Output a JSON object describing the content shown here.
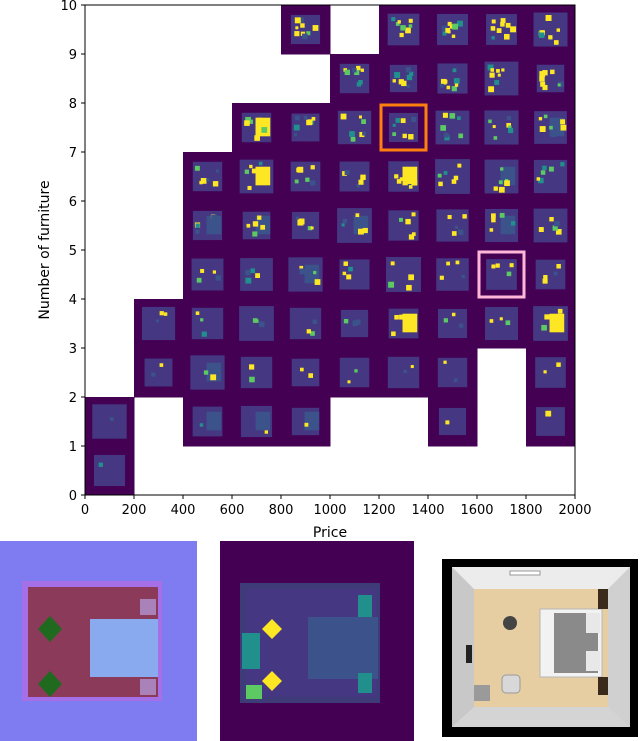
{
  "chart_data": {
    "type": "heatmap",
    "title": "",
    "xlabel": "Price",
    "ylabel": "Number of furniture",
    "xlim": [
      0,
      2000
    ],
    "ylim": [
      0,
      10
    ],
    "x_ticks": [
      "0",
      "200",
      "400",
      "600",
      "800",
      "1000",
      "1200",
      "1400",
      "1600",
      "1800",
      "2000"
    ],
    "y_ticks": [
      "0",
      "1",
      "2",
      "3",
      "4",
      "5",
      "6",
      "7",
      "8",
      "9",
      "10"
    ],
    "bin_size": {
      "price": 200,
      "furniture": 1
    },
    "colormap": "viridis",
    "background_color": "#440154",
    "occupied_cells": [
      [
        0,
        0
      ],
      [
        0,
        1
      ],
      [
        2,
        1
      ],
      [
        3,
        1
      ],
      [
        4,
        1
      ],
      [
        7,
        1
      ],
      [
        9,
        1
      ],
      [
        1,
        2
      ],
      [
        2,
        2
      ],
      [
        3,
        2
      ],
      [
        4,
        2
      ],
      [
        5,
        2
      ],
      [
        6,
        2
      ],
      [
        7,
        2
      ],
      [
        9,
        2
      ],
      [
        1,
        3
      ],
      [
        2,
        3
      ],
      [
        3,
        3
      ],
      [
        4,
        3
      ],
      [
        5,
        3
      ],
      [
        6,
        3
      ],
      [
        7,
        3
      ],
      [
        8,
        3
      ],
      [
        9,
        3
      ],
      [
        2,
        4
      ],
      [
        3,
        4
      ],
      [
        4,
        4
      ],
      [
        5,
        4
      ],
      [
        6,
        4
      ],
      [
        7,
        4
      ],
      [
        8,
        4
      ],
      [
        9,
        4
      ],
      [
        2,
        5
      ],
      [
        3,
        5
      ],
      [
        4,
        5
      ],
      [
        5,
        5
      ],
      [
        6,
        5
      ],
      [
        7,
        5
      ],
      [
        8,
        5
      ],
      [
        9,
        5
      ],
      [
        2,
        6
      ],
      [
        3,
        6
      ],
      [
        4,
        6
      ],
      [
        5,
        6
      ],
      [
        6,
        6
      ],
      [
        7,
        6
      ],
      [
        8,
        6
      ],
      [
        9,
        6
      ],
      [
        3,
        7
      ],
      [
        4,
        7
      ],
      [
        5,
        7
      ],
      [
        6,
        7
      ],
      [
        7,
        7
      ],
      [
        8,
        7
      ],
      [
        9,
        7
      ],
      [
        5,
        8
      ],
      [
        6,
        8
      ],
      [
        7,
        8
      ],
      [
        8,
        8
      ],
      [
        9,
        8
      ],
      [
        4,
        9
      ],
      [
        6,
        9
      ],
      [
        7,
        9
      ],
      [
        8,
        9
      ],
      [
        9,
        9
      ]
    ],
    "highlights": [
      {
        "price_bin": [
          1200,
          1400
        ],
        "furniture_bin": [
          7,
          8
        ],
        "color": "#ff7f0e"
      },
      {
        "price_bin": [
          1600,
          1800
        ],
        "furniture_bin": [
          4,
          5
        ],
        "color": "#ffb6d9"
      }
    ]
  },
  "colors": {
    "dark_purple": "#440154",
    "room_floor": "#453781",
    "slate_blue": "#3b528b",
    "teal": "#21908d",
    "green": "#5dc962",
    "yellow": "#fde725",
    "orange_highlight": "#ff7f0e",
    "pink_highlight": "#ffb6d9",
    "normal_map_bg": "#7e7cf0",
    "normal_map_floor": "#8b3a5a",
    "normal_map_bed": "#8aaaf0",
    "normal_map_plant": "#1f6a1f",
    "render_floor": "#e6cea2",
    "render_wall": "#d9d9d9"
  },
  "thumbnails": {
    "normal_map": {
      "icon": "normal-map-render"
    },
    "semantic_map": {
      "icon": "semantic-layout-render"
    },
    "photo_render": {
      "icon": "top-down-room-render"
    }
  }
}
